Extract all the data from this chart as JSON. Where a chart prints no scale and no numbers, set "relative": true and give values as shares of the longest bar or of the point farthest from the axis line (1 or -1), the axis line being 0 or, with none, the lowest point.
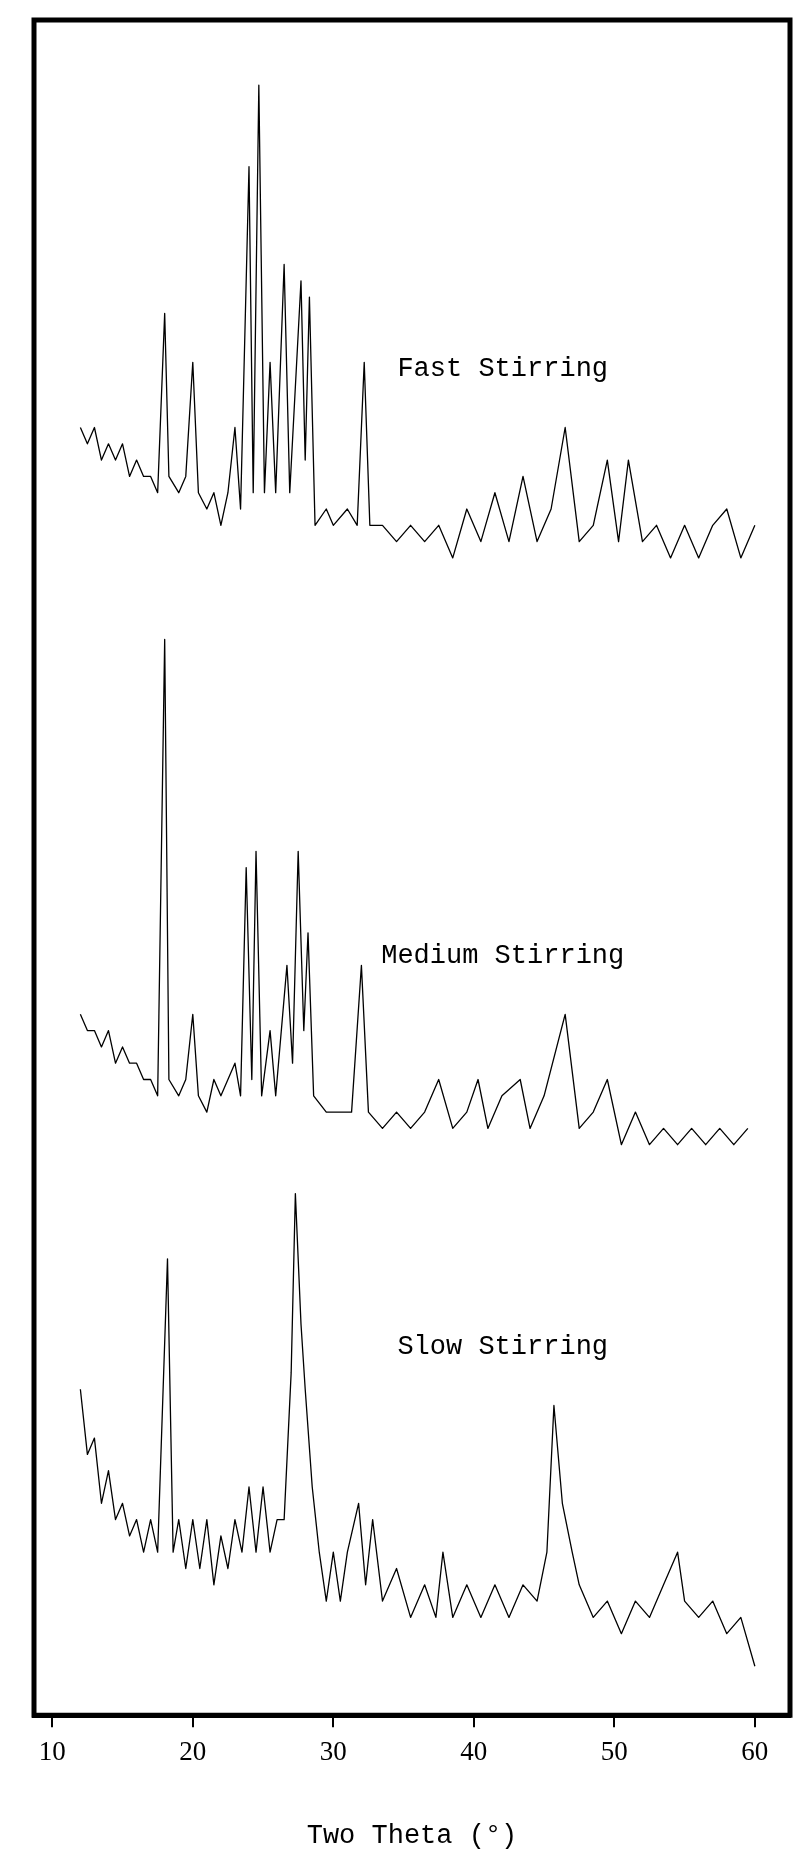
{
  "chart_data": {
    "type": "line",
    "relative": true,
    "xlabel": "Two Theta (°)",
    "xlim": [
      8.7,
      62.5
    ],
    "xticks": [
      10,
      20,
      30,
      40,
      50,
      60
    ],
    "grid": false,
    "legend": false,
    "marker": "none",
    "line_style": "solid",
    "tick_labels": "x",
    "series": [
      {
        "name": "Fast Stirring",
        "color": "#000000",
        "x": [
          12,
          12.5,
          13,
          13.5,
          14,
          14.5,
          15,
          15.5,
          16,
          16.5,
          17,
          17.5,
          18,
          18.3,
          19,
          19.5,
          20,
          20.4,
          21,
          21.5,
          22,
          22.5,
          23,
          23.4,
          24,
          24.3,
          24.7,
          25.1,
          25.5,
          25.9,
          26.5,
          26.9,
          27.7,
          28.0,
          28.3,
          28.7,
          29.5,
          30,
          31,
          31.7,
          32.2,
          32.6,
          33.5,
          34.5,
          35.5,
          36.5,
          37.5,
          38.5,
          39.5,
          40.5,
          41.5,
          42.5,
          43.5,
          44.5,
          45.5,
          46.5,
          47.5,
          48.5,
          49.5,
          50.3,
          51,
          52,
          53,
          54,
          55,
          56,
          57,
          58,
          59,
          60
        ],
        "values": [
          0.79,
          0.78,
          0.79,
          0.77,
          0.78,
          0.77,
          0.78,
          0.76,
          0.77,
          0.76,
          0.76,
          0.75,
          0.86,
          0.76,
          0.75,
          0.76,
          0.83,
          0.75,
          0.74,
          0.75,
          0.73,
          0.75,
          0.79,
          0.74,
          0.95,
          0.75,
          1,
          0.75,
          0.83,
          0.75,
          0.89,
          0.75,
          0.88,
          0.77,
          0.87,
          0.73,
          0.74,
          0.73,
          0.74,
          0.73,
          0.83,
          0.73,
          0.73,
          0.72,
          0.73,
          0.72,
          0.73,
          0.71,
          0.74,
          0.72,
          0.75,
          0.72,
          0.76,
          0.72,
          0.74,
          0.79,
          0.72,
          0.73,
          0.77,
          0.72,
          0.77,
          0.72,
          0.73,
          0.71,
          0.73,
          0.71,
          0.73,
          0.74,
          0.71,
          0.73
        ]
      },
      {
        "name": "Medium Stirring",
        "color": "#000000",
        "x": [
          12,
          12.5,
          13,
          13.5,
          14,
          14.5,
          15,
          15.5,
          16,
          16.5,
          17,
          17.5,
          18,
          18.3,
          19,
          19.5,
          20,
          20.4,
          21,
          21.5,
          22,
          22.5,
          23,
          23.4,
          23.8,
          24.2,
          24.5,
          24.9,
          25.5,
          25.9,
          26.7,
          27.1,
          27.5,
          27.9,
          28.2,
          28.6,
          29.5,
          30.5,
          31.3,
          32,
          32.5,
          33.5,
          34.5,
          35.5,
          36.5,
          37.5,
          38.5,
          39.5,
          40.3,
          41,
          42,
          43.3,
          44,
          45,
          46.5,
          47.5,
          48.5,
          49.5,
          50.5,
          51.5,
          52.5,
          53.5,
          54.5,
          55.5,
          56.5,
          57.5,
          58.5,
          59.5
        ],
        "values": [
          0.43,
          0.42,
          0.42,
          0.41,
          0.42,
          0.4,
          0.41,
          0.4,
          0.4,
          0.39,
          0.39,
          0.38,
          0.66,
          0.39,
          0.38,
          0.39,
          0.43,
          0.38,
          0.37,
          0.39,
          0.38,
          0.39,
          0.4,
          0.38,
          0.52,
          0.39,
          0.53,
          0.38,
          0.42,
          0.38,
          0.46,
          0.4,
          0.53,
          0.42,
          0.48,
          0.38,
          0.37,
          0.37,
          0.37,
          0.46,
          0.37,
          0.36,
          0.37,
          0.36,
          0.37,
          0.39,
          0.36,
          0.37,
          0.39,
          0.36,
          0.38,
          0.39,
          0.36,
          0.38,
          0.43,
          0.36,
          0.37,
          0.39,
          0.35,
          0.37,
          0.35,
          0.36,
          0.35,
          0.36,
          0.35,
          0.36,
          0.35,
          0.36
        ]
      },
      {
        "name": "Slow Stirring",
        "color": "#000000",
        "x": [
          12,
          12.5,
          13,
          13.5,
          14,
          14.5,
          15,
          15.5,
          16,
          16.5,
          17,
          17.5,
          18.2,
          18.6,
          19,
          19.5,
          20,
          20.5,
          21,
          21.5,
          22,
          22.5,
          23,
          23.5,
          24,
          24.5,
          25,
          25.5,
          26,
          26.5,
          27,
          27.3,
          27.7,
          28,
          28.5,
          29,
          29.5,
          30,
          30.5,
          31,
          31.8,
          32.3,
          32.8,
          33.5,
          34.5,
          35.5,
          36.5,
          37.3,
          37.8,
          38.5,
          39.5,
          40.5,
          41.5,
          42.5,
          43.5,
          44.5,
          45.2,
          45.7,
          46.3,
          47,
          47.5,
          48.5,
          49.5,
          50.5,
          51.5,
          52.5,
          53.5,
          54.5,
          55,
          56,
          57,
          58,
          59,
          60
        ],
        "values": [
          0.2,
          0.16,
          0.17,
          0.13,
          0.15,
          0.12,
          0.13,
          0.11,
          0.12,
          0.1,
          0.12,
          0.1,
          0.28,
          0.1,
          0.12,
          0.09,
          0.12,
          0.09,
          0.12,
          0.08,
          0.11,
          0.09,
          0.12,
          0.1,
          0.14,
          0.1,
          0.14,
          0.1,
          0.12,
          0.12,
          0.21,
          0.32,
          0.24,
          0.2,
          0.14,
          0.1,
          0.07,
          0.1,
          0.07,
          0.1,
          0.13,
          0.08,
          0.12,
          0.07,
          0.09,
          0.06,
          0.08,
          0.06,
          0.1,
          0.06,
          0.08,
          0.06,
          0.08,
          0.06,
          0.08,
          0.07,
          0.1,
          0.19,
          0.13,
          0.1,
          0.08,
          0.06,
          0.07,
          0.05,
          0.07,
          0.06,
          0.08,
          0.1,
          0.07,
          0.06,
          0.07,
          0.05,
          0.06,
          0.03
        ]
      }
    ]
  }
}
